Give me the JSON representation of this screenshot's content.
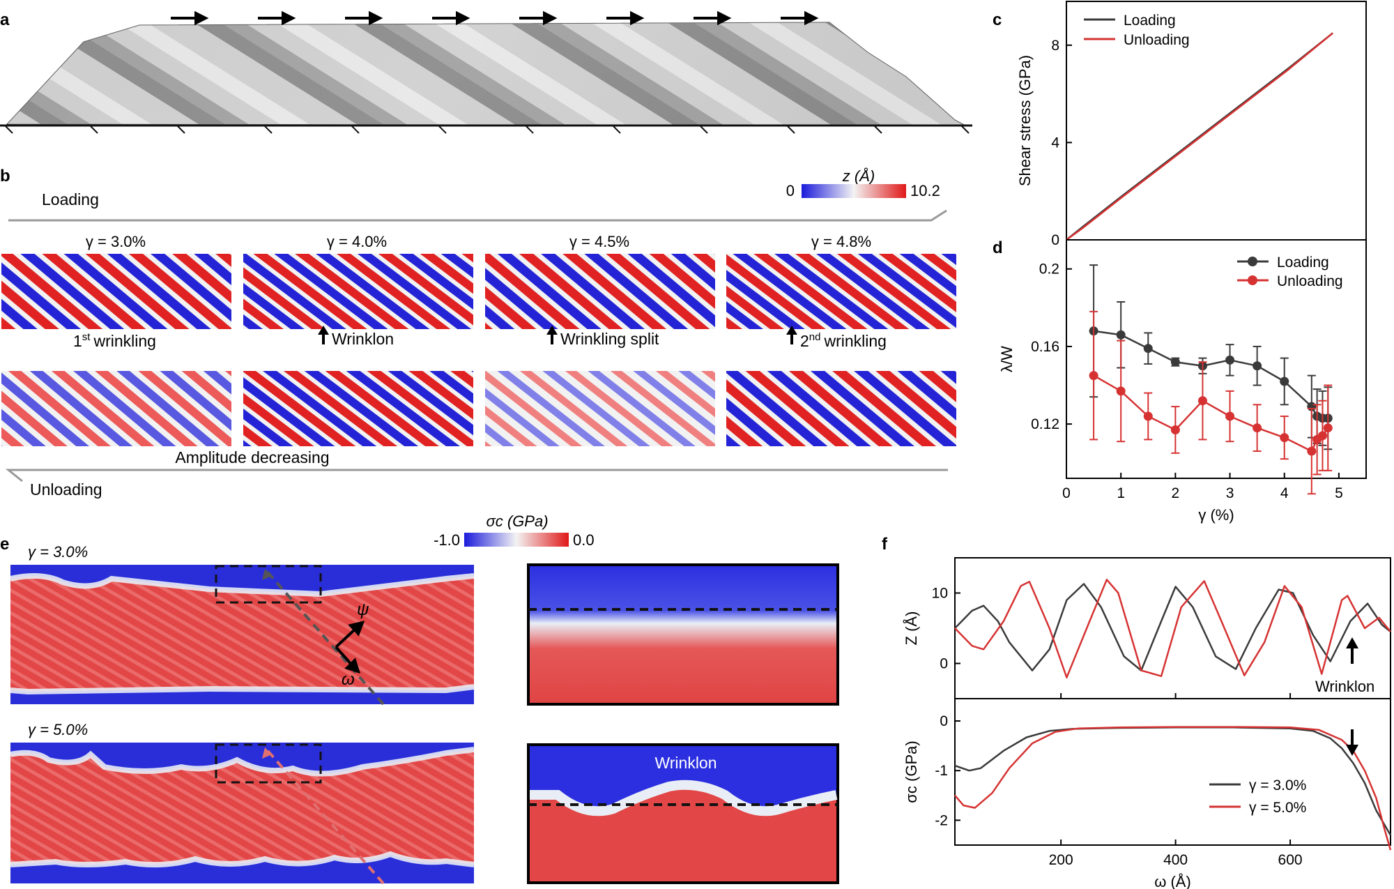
{
  "panel_labels": {
    "a": "a",
    "b": "b",
    "c": "c",
    "d": "d",
    "e": "e",
    "f": "f"
  },
  "panel_b": {
    "colorbar": {
      "title": "z (Å)",
      "min_label": "0",
      "max_label": "10.2"
    },
    "loading_label": "Loading",
    "unloading_label": "Unloading",
    "strains": [
      "γ = 3.0%",
      "γ = 4.0%",
      "γ = 4.5%",
      "γ = 4.8%"
    ],
    "captions": {
      "first_ordinal": "1",
      "first_sup": "st",
      "first_text": "wrinkling",
      "wrinklon": "Wrinklon",
      "split": "Wrinkling split",
      "second_ordinal": "2",
      "second_sup": "nd",
      "second_text": "wrinkling"
    },
    "amplitude_label": "Amplitude decreasing"
  },
  "panel_e": {
    "colorbar": {
      "title": "σc (GPa)",
      "min_label": "-1.0",
      "max_label": "0.0"
    },
    "strain_top": "γ = 3.0%",
    "strain_bottom": "γ = 5.0%",
    "axis_psi": "ψ",
    "axis_omega": "ω",
    "zoom_label": "Wrinklon"
  },
  "colors": {
    "loading": "#3a3a3a",
    "unloading": "#d63232",
    "stress_low": "#1f2fd8",
    "stress_high": "#e03030"
  },
  "chart_data": [
    {
      "id": "c",
      "type": "line",
      "xlabel": "",
      "ylabel": "Shear stress (GPa)",
      "xlim": [
        0,
        5.4
      ],
      "ylim": [
        0,
        9.8
      ],
      "yticks": [
        0,
        4,
        8
      ],
      "series": [
        {
          "name": "Loading",
          "x": [
            0,
            0.3,
            1,
            2,
            3,
            4,
            4.8
          ],
          "y": [
            0,
            0.55,
            1.8,
            3.55,
            5.3,
            7.05,
            8.5
          ]
        },
        {
          "name": "Unloading",
          "x": [
            0,
            0.3,
            1,
            2,
            3,
            4,
            4.8
          ],
          "y": [
            0,
            0.5,
            1.75,
            3.5,
            5.25,
            7.0,
            8.5
          ]
        }
      ],
      "legend": "top-left"
    },
    {
      "id": "d",
      "type": "scatter",
      "xlabel": "γ (%)",
      "ylabel": "λ/W",
      "xlim": [
        0,
        5.5
      ],
      "ylim": [
        0.092,
        0.215
      ],
      "xticks": [
        0,
        1,
        2,
        3,
        4,
        5
      ],
      "yticks": [
        0.12,
        0.16,
        0.2
      ],
      "series": [
        {
          "name": "Loading",
          "x": [
            0.5,
            1.0,
            1.5,
            2.0,
            2.5,
            3.0,
            3.5,
            4.0,
            4.5,
            4.6,
            4.7,
            4.8
          ],
          "y": [
            0.168,
            0.166,
            0.159,
            0.152,
            0.15,
            0.153,
            0.15,
            0.142,
            0.129,
            0.124,
            0.123,
            0.123
          ],
          "err": [
            0.034,
            0.017,
            0.008,
            0.002,
            0.004,
            0.008,
            0.01,
            0.012,
            0.016,
            0.014,
            0.014,
            0.016
          ]
        },
        {
          "name": "Unloading",
          "x": [
            0.5,
            1.0,
            1.5,
            2.0,
            2.5,
            3.0,
            3.5,
            4.0,
            4.5,
            4.6,
            4.7,
            4.8
          ],
          "y": [
            0.145,
            0.137,
            0.124,
            0.117,
            0.132,
            0.124,
            0.118,
            0.113,
            0.106,
            0.112,
            0.114,
            0.118
          ],
          "err": [
            0.033,
            0.026,
            0.012,
            0.012,
            0.02,
            0.013,
            0.012,
            0.011,
            0.022,
            0.018,
            0.018,
            0.022
          ]
        }
      ],
      "legend": "top-right"
    },
    {
      "id": "f-top",
      "type": "line",
      "xlabel": "",
      "ylabel": "Z (Å)",
      "xlim": [
        15,
        775
      ],
      "ylim": [
        -5,
        15
      ],
      "yticks": [
        0,
        10
      ],
      "series": [
        {
          "name": "γ = 3.0%",
          "x": [
            15,
            45,
            65,
            90,
            110,
            150,
            180,
            210,
            240,
            270,
            310,
            340,
            375,
            400,
            430,
            470,
            505,
            540,
            580,
            605,
            640,
            670,
            705,
            735,
            760,
            775
          ],
          "y": [
            5,
            7.5,
            8.2,
            6,
            3,
            -1,
            2,
            9,
            11.3,
            8,
            1,
            -1,
            6,
            10.9,
            8,
            1,
            -0.8,
            5,
            10.5,
            10,
            4,
            0.3,
            6,
            8.5,
            5.5,
            4.5
          ]
        },
        {
          "name": "γ = 5.0%",
          "x": [
            15,
            45,
            65,
            100,
            130,
            145,
            180,
            210,
            250,
            280,
            300,
            340,
            375,
            410,
            450,
            480,
            520,
            555,
            590,
            620,
            655,
            690,
            700,
            730,
            755,
            775
          ],
          "y": [
            5,
            2.5,
            2,
            6,
            11,
            11.6,
            5,
            -2,
            6,
            11.9,
            10,
            -1,
            -1.8,
            8,
            11.7,
            6,
            -1.7,
            3,
            11,
            8,
            -1.5,
            9,
            9.6,
            5,
            6.5,
            4.5
          ]
        }
      ]
    },
    {
      "id": "f-bottom",
      "type": "line",
      "xlabel": "ω (Å)",
      "ylabel": "σc (GPa)",
      "xlim": [
        15,
        775
      ],
      "ylim": [
        -2.5,
        0.45
      ],
      "xticks": [
        200,
        400,
        600
      ],
      "yticks": [
        -2,
        -1,
        0
      ],
      "series": [
        {
          "name": "γ = 3.0%",
          "x": [
            15,
            40,
            60,
            100,
            140,
            180,
            220,
            300,
            400,
            500,
            600,
            640,
            670,
            690,
            710,
            730,
            750,
            775
          ],
          "y": [
            -0.9,
            -1.0,
            -0.95,
            -0.6,
            -0.33,
            -0.2,
            -0.16,
            -0.14,
            -0.13,
            -0.13,
            -0.15,
            -0.2,
            -0.35,
            -0.55,
            -0.85,
            -1.25,
            -1.8,
            -2.3
          ]
        },
        {
          "name": "γ = 5.0%",
          "x": [
            15,
            30,
            50,
            80,
            110,
            150,
            190,
            230,
            300,
            400,
            500,
            600,
            650,
            690,
            710,
            730,
            750,
            765,
            775
          ],
          "y": [
            -1.5,
            -1.7,
            -1.75,
            -1.45,
            -0.95,
            -0.45,
            -0.22,
            -0.15,
            -0.13,
            -0.12,
            -0.12,
            -0.13,
            -0.18,
            -0.38,
            -0.6,
            -1.0,
            -1.55,
            -2.2,
            -2.6
          ]
        }
      ],
      "legend": "bottom-right"
    }
  ]
}
